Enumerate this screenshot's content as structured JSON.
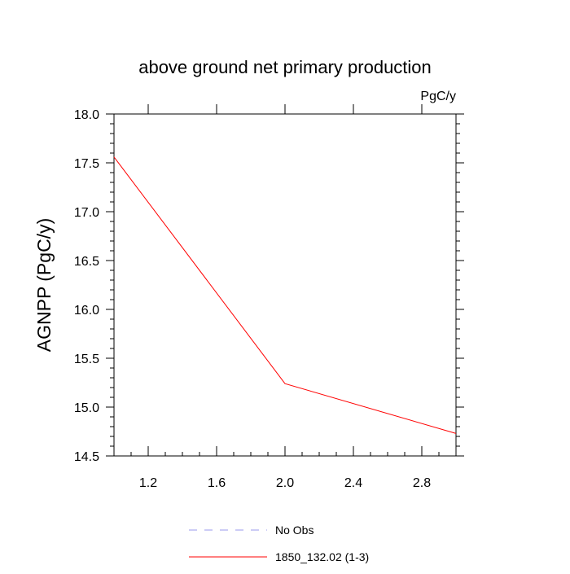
{
  "chart_data": {
    "type": "line",
    "title": "above ground net primary production",
    "units_label": "PgC/y",
    "xlabel": "",
    "ylabel": "AGNPP  (PgC/y)",
    "xlim": [
      1.0,
      3.0
    ],
    "ylim": [
      14.5,
      18.0
    ],
    "x_ticks": [
      1.2,
      1.6,
      2.0,
      2.4,
      2.8
    ],
    "x_tick_labels": [
      "1.2",
      "1.6",
      "2.0",
      "2.4",
      "2.8"
    ],
    "y_ticks": [
      14.5,
      15.0,
      15.5,
      16.0,
      16.5,
      17.0,
      17.5,
      18.0
    ],
    "y_tick_labels": [
      "14.5",
      "15.0",
      "15.5",
      "16.0",
      "16.5",
      "17.0",
      "17.5",
      "18.0"
    ],
    "grid": false,
    "legend_position": "bottom",
    "series": [
      {
        "name": "No Obs",
        "x": [],
        "values": [],
        "color": "#9999ee",
        "style": "dashed"
      },
      {
        "name": "1850_132.02 (1-3)",
        "x": [
          1,
          2,
          3
        ],
        "values": [
          17.56,
          15.24,
          14.73
        ],
        "color": "#ff0000",
        "style": "solid"
      }
    ]
  }
}
